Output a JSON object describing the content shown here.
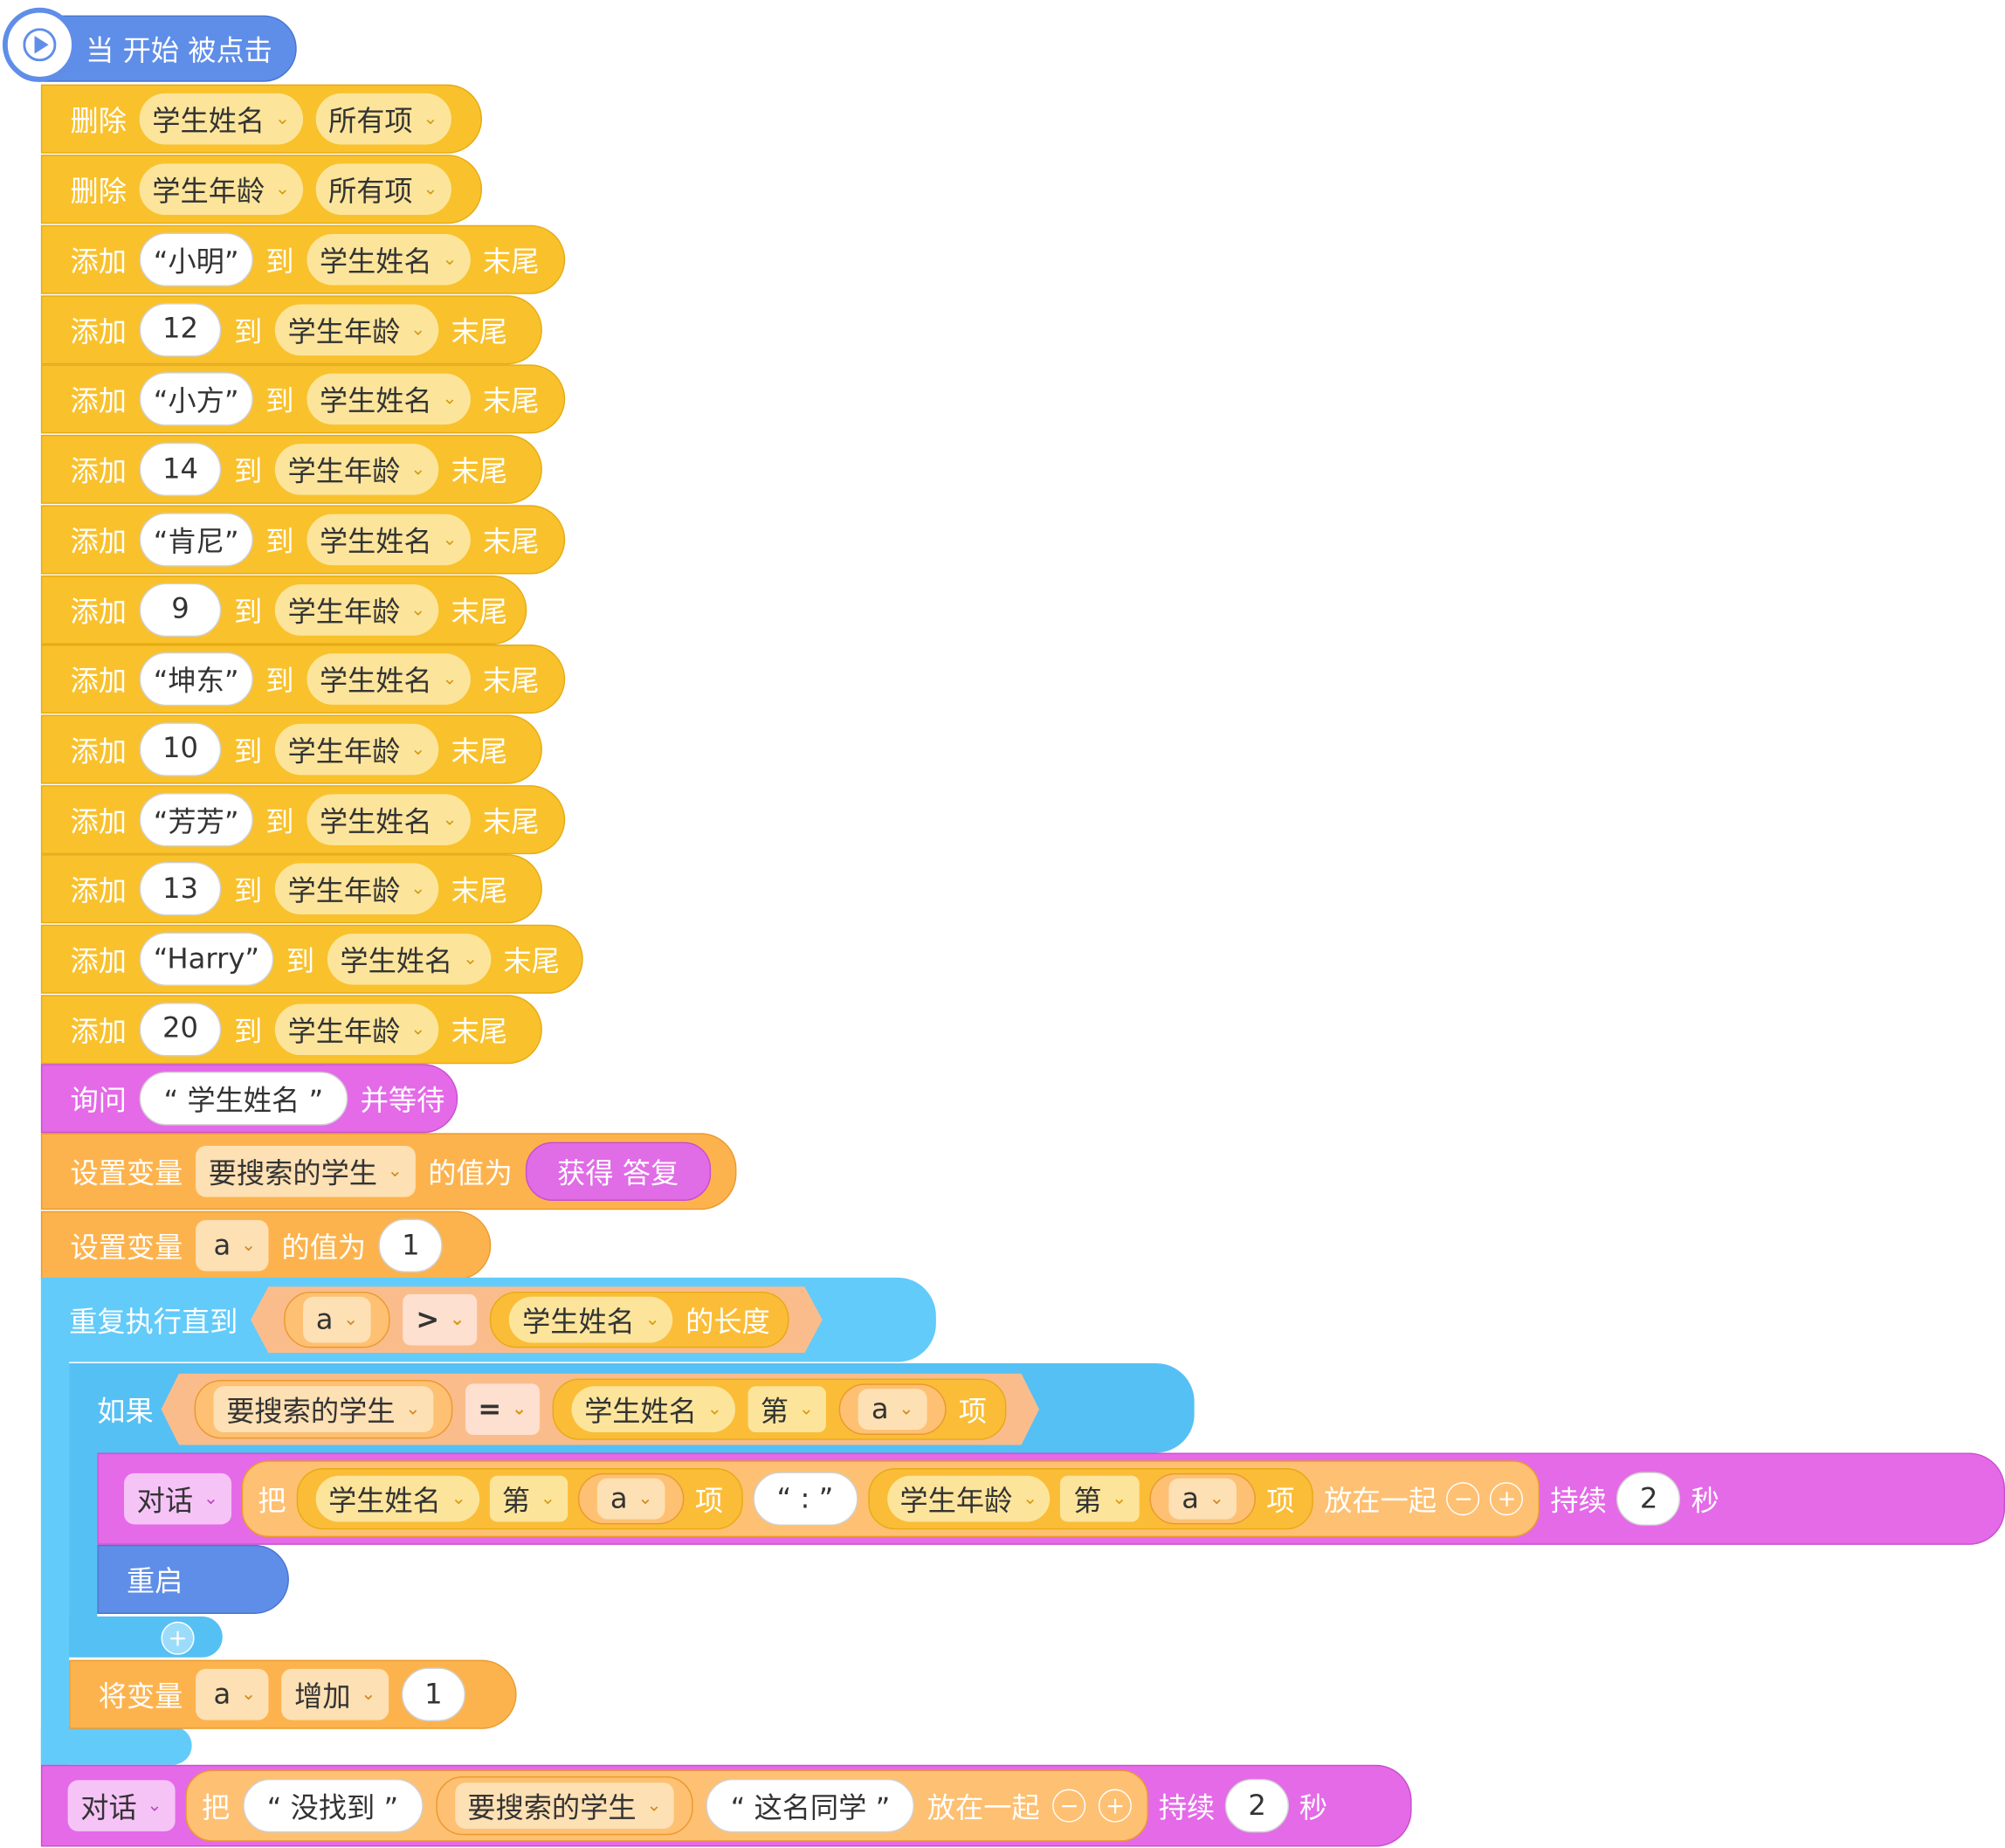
{
  "hat": {
    "label": "当 开始 被点击"
  },
  "delete_blocks": [
    {
      "verb": "删除",
      "list": "学生姓名",
      "which": "所有项"
    },
    {
      "verb": "删除",
      "list": "学生年龄",
      "which": "所有项"
    }
  ],
  "add_blocks": [
    {
      "verb": "添加",
      "value": "“小明”",
      "to": "到",
      "list": "学生姓名",
      "pos": "末尾"
    },
    {
      "verb": "添加",
      "value": "12",
      "to": "到",
      "list": "学生年龄",
      "pos": "末尾"
    },
    {
      "verb": "添加",
      "value": "“小方”",
      "to": "到",
      "list": "学生姓名",
      "pos": "末尾"
    },
    {
      "verb": "添加",
      "value": "14",
      "to": "到",
      "list": "学生年龄",
      "pos": "末尾"
    },
    {
      "verb": "添加",
      "value": "“肯尼”",
      "to": "到",
      "list": "学生姓名",
      "pos": "末尾"
    },
    {
      "verb": "添加",
      "value": "9",
      "to": "到",
      "list": "学生年龄",
      "pos": "末尾"
    },
    {
      "verb": "添加",
      "value": "“坤东”",
      "to": "到",
      "list": "学生姓名",
      "pos": "末尾"
    },
    {
      "verb": "添加",
      "value": "10",
      "to": "到",
      "list": "学生年龄",
      "pos": "末尾"
    },
    {
      "verb": "添加",
      "value": "“芳芳”",
      "to": "到",
      "list": "学生姓名",
      "pos": "末尾"
    },
    {
      "verb": "添加",
      "value": "13",
      "to": "到",
      "list": "学生年龄",
      "pos": "末尾"
    },
    {
      "verb": "添加",
      "value": "“Harry”",
      "to": "到",
      "list": "学生姓名",
      "pos": "末尾"
    },
    {
      "verb": "添加",
      "value": "20",
      "to": "到",
      "list": "学生年龄",
      "pos": "末尾"
    }
  ],
  "ask": {
    "verb": "询问",
    "value": "“ 学生姓名 ”",
    "suffix": "并等待"
  },
  "set1": {
    "verb": "设置变量",
    "var": "要搜索的学生",
    "mid": "的值为",
    "value": "获得 答复"
  },
  "set2": {
    "verb": "设置变量",
    "var": "a",
    "mid": "的值为",
    "value": "1"
  },
  "repeat": {
    "label": "重复执行直到",
    "left": "a",
    "op": ">",
    "list": "学生姓名",
    "suffix": "的长度"
  },
  "if_block": {
    "label": "如果",
    "left": "要搜索的学生",
    "op": "=",
    "list": "学生姓名",
    "nth": "第",
    "idx": "a",
    "item": "项"
  },
  "say1": {
    "kind": "对话",
    "ba": "把",
    "list1": "学生姓名",
    "nth1": "第",
    "idx1": "a",
    "item1": "项",
    "sep": "“ : ”",
    "list2": "学生年龄",
    "nth2": "第",
    "idx2": "a",
    "item2": "项",
    "join": "放在一起",
    "minus": "−",
    "plus": "+",
    "dur": "持续",
    "secs": "2",
    "unit": "秒"
  },
  "restart": {
    "label": "重启"
  },
  "add_branch": {
    "plus": "+"
  },
  "change": {
    "verb": "将变量",
    "var": "a",
    "op": "增加",
    "value": "1"
  },
  "say2": {
    "kind": "对话",
    "ba": "把",
    "str1": "“ 没找到 ”",
    "var": "要搜索的学生",
    "str2": "“ 这名同学 ”",
    "join": "放在一起",
    "minus": "−",
    "plus": "+",
    "dur": "持续",
    "secs": "2",
    "unit": "秒"
  }
}
